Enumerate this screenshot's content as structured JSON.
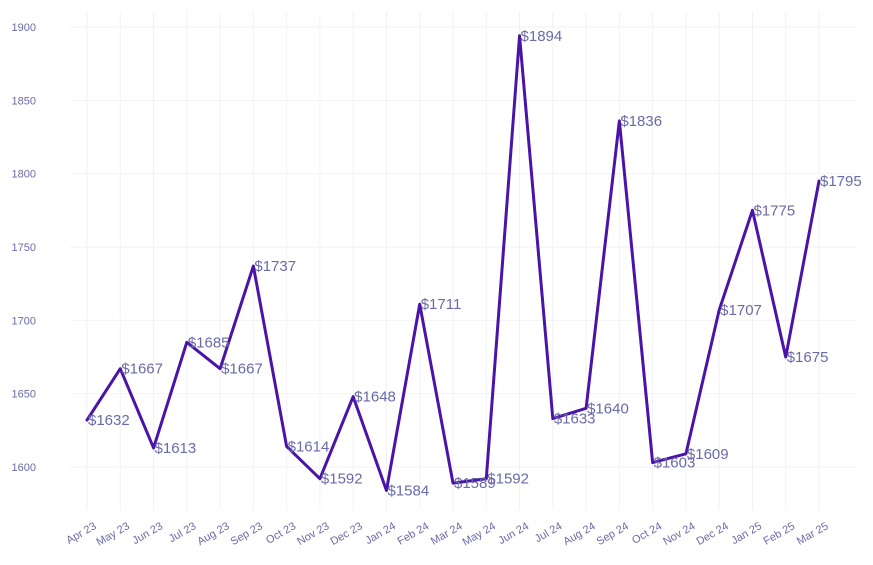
{
  "colors": {
    "line": "#4a14a8",
    "text": "#6a6aa8",
    "grid": "#f2f2f5",
    "background": "#ffffff"
  },
  "chart_data": {
    "type": "line",
    "title": "",
    "xlabel": "",
    "ylabel": "",
    "grid": true,
    "legend": "none",
    "ylim": [
      1570,
      1910
    ],
    "yticks": [
      1600,
      1650,
      1700,
      1750,
      1800,
      1850,
      1900
    ],
    "label_prefix": "$",
    "categories": [
      "Apr 23",
      "May 23",
      "Jun 23",
      "Jul 23",
      "Aug 23",
      "Sep 23",
      "Oct 23",
      "Nov 23",
      "Dec 23",
      "Jan 24",
      "Feb 24",
      "Mar 24",
      "May 24",
      "Jun 24",
      "Jul 24",
      "Aug 24",
      "Sep 24",
      "Oct 24",
      "Nov 24",
      "Dec 24",
      "Jan 25",
      "Feb 25",
      "Mar 25"
    ],
    "series": [
      {
        "values": [
          1632,
          1667,
          1613,
          1685,
          1667,
          1737,
          1614,
          1592,
          1648,
          1584,
          1711,
          1589,
          1592,
          1894,
          1633,
          1640,
          1836,
          1603,
          1609,
          1707,
          1775,
          1675,
          1795
        ]
      }
    ]
  }
}
